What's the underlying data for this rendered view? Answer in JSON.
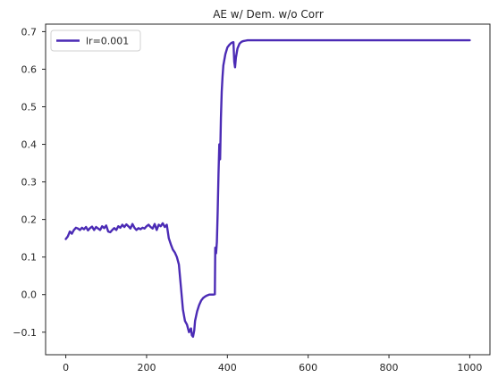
{
  "chart_data": {
    "type": "line",
    "title": "AE w/ Dem. w/o Corr",
    "xlabel": "",
    "ylabel": "",
    "xlim": [
      -50,
      1050
    ],
    "ylim": [
      -0.16,
      0.72
    ],
    "xticks": [
      0,
      200,
      400,
      600,
      800,
      1000
    ],
    "yticks": [
      -0.1,
      0.0,
      0.1,
      0.2,
      0.3,
      0.4,
      0.5,
      0.6,
      0.7
    ],
    "grid": false,
    "legend_position": "top-left",
    "series": [
      {
        "name": "lr=0.001",
        "color": "#4b2bb5",
        "x": [
          0,
          5,
          10,
          15,
          20,
          25,
          30,
          35,
          40,
          45,
          50,
          55,
          60,
          65,
          70,
          75,
          80,
          85,
          90,
          95,
          100,
          105,
          110,
          115,
          120,
          125,
          130,
          135,
          140,
          145,
          150,
          155,
          160,
          165,
          170,
          175,
          180,
          185,
          190,
          195,
          200,
          205,
          210,
          215,
          220,
          225,
          230,
          235,
          240,
          245,
          250,
          255,
          260,
          265,
          270,
          275,
          280,
          285,
          290,
          295,
          300,
          305,
          310,
          312,
          315,
          318,
          320,
          325,
          330,
          335,
          340,
          345,
          350,
          355,
          360,
          365,
          369,
          370,
          372,
          374,
          376,
          378,
          380,
          382,
          384,
          386,
          388,
          390,
          395,
          400,
          405,
          410,
          415,
          417,
          419,
          421,
          425,
          430,
          435,
          440,
          445,
          450,
          460,
          470,
          480,
          500,
          600,
          700,
          800,
          900,
          1000
        ],
        "y": [
          0.148,
          0.155,
          0.168,
          0.162,
          0.172,
          0.178,
          0.176,
          0.172,
          0.178,
          0.174,
          0.18,
          0.171,
          0.177,
          0.181,
          0.172,
          0.18,
          0.176,
          0.172,
          0.182,
          0.177,
          0.184,
          0.168,
          0.166,
          0.172,
          0.177,
          0.172,
          0.182,
          0.178,
          0.186,
          0.18,
          0.187,
          0.182,
          0.176,
          0.188,
          0.178,
          0.172,
          0.177,
          0.174,
          0.178,
          0.176,
          0.182,
          0.186,
          0.18,
          0.176,
          0.188,
          0.172,
          0.186,
          0.182,
          0.19,
          0.18,
          0.186,
          0.15,
          0.134,
          0.12,
          0.112,
          0.1,
          0.08,
          0.02,
          -0.04,
          -0.07,
          -0.08,
          -0.1,
          -0.09,
          -0.108,
          -0.112,
          -0.095,
          -0.07,
          -0.045,
          -0.028,
          -0.016,
          -0.009,
          -0.005,
          -0.002,
          0.0,
          0.0,
          0.0,
          0.001,
          0.125,
          0.11,
          0.14,
          0.22,
          0.32,
          0.4,
          0.36,
          0.47,
          0.54,
          0.58,
          0.61,
          0.64,
          0.658,
          0.665,
          0.67,
          0.672,
          0.62,
          0.605,
          0.63,
          0.655,
          0.668,
          0.673,
          0.675,
          0.676,
          0.677,
          0.677,
          0.677,
          0.677,
          0.677,
          0.677,
          0.677,
          0.677,
          0.677,
          0.677
        ]
      }
    ]
  }
}
